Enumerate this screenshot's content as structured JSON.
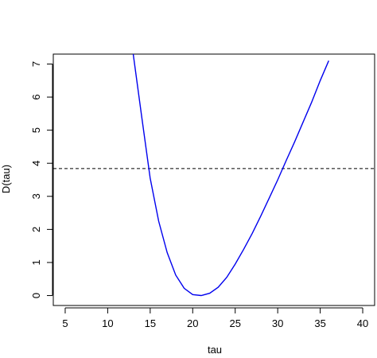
{
  "chart_data": {
    "type": "line",
    "title": "",
    "xlabel": "tau",
    "ylabel": "D(tau)",
    "xlim": [
      3.6,
      41.4
    ],
    "ylim": [
      -0.3,
      7.3
    ],
    "x_ticks": [
      5,
      10,
      15,
      20,
      25,
      30,
      35,
      40
    ],
    "y_ticks": [
      0,
      1,
      2,
      3,
      4,
      5,
      6,
      7
    ],
    "grid": false,
    "legend": "none",
    "series": [
      {
        "color": "#0000ee",
        "style": "solid",
        "x": [
          13,
          14,
          15,
          16,
          17,
          18,
          19,
          20,
          21,
          22,
          23,
          24,
          25,
          26,
          27,
          28,
          29,
          30,
          31,
          32,
          33,
          34,
          35,
          36
        ],
        "y": [
          7.3,
          5.4,
          3.55,
          2.25,
          1.3,
          0.62,
          0.22,
          0.03,
          0.0,
          0.07,
          0.25,
          0.55,
          0.95,
          1.4,
          1.88,
          2.4,
          2.95,
          3.5,
          4.08,
          4.65,
          5.25,
          5.85,
          6.5,
          7.1
        ]
      }
    ],
    "reference_lines": [
      {
        "orientation": "horizontal",
        "y": 3.84,
        "color": "#000000",
        "style": "dashed"
      }
    ]
  }
}
